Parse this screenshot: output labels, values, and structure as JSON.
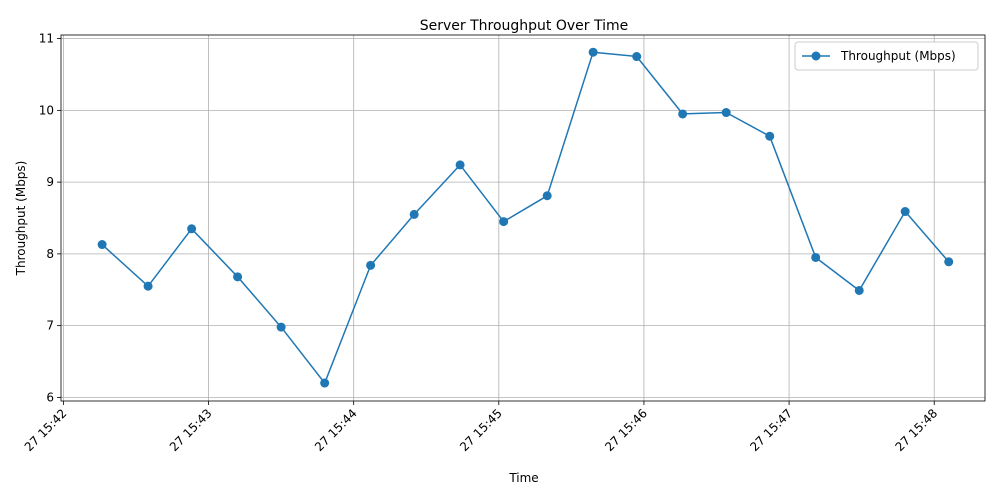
{
  "chart_data": {
    "type": "line",
    "title": "Server Throughput Over Time",
    "xlabel": "Time",
    "ylabel": "Throughput (Mbps)",
    "x_tick_labels": [
      "27 15:42",
      "27 15:43",
      "27 15:44",
      "27 15:45",
      "27 15:46",
      "27 15:47",
      "27 15:48"
    ],
    "y_tick_labels": [
      "6",
      "7",
      "8",
      "9",
      "10",
      "11"
    ],
    "x_ticks": [
      "15:42",
      "15:43",
      "15:44",
      "15:45",
      "15:46",
      "15:47",
      "15:48"
    ],
    "y_ticks": [
      6,
      7,
      8,
      9,
      10,
      11
    ],
    "xlim": [
      "15:41:59",
      "15:48:21"
    ],
    "ylim": [
      5.95,
      11.05
    ],
    "grid": true,
    "legend_position": "top-right",
    "x": [
      "15:42:16",
      "15:42:35",
      "15:42:53",
      "15:43:12",
      "15:43:30",
      "15:43:48",
      "15:44:07",
      "15:44:25",
      "15:44:44",
      "15:45:02",
      "15:45:20",
      "15:45:39",
      "15:45:57",
      "15:46:16",
      "15:46:34",
      "15:46:52",
      "15:47:11",
      "15:47:29",
      "15:47:48",
      "15:48:06"
    ],
    "series": [
      {
        "name": "Throughput (Mbps)",
        "color": "#1f77b4",
        "marker": "circle",
        "values": [
          8.13,
          7.55,
          8.35,
          7.68,
          6.98,
          6.2,
          7.84,
          8.55,
          9.24,
          8.45,
          8.81,
          10.81,
          10.75,
          9.95,
          9.97,
          9.64,
          7.95,
          7.49,
          8.59,
          7.89
        ]
      }
    ]
  }
}
